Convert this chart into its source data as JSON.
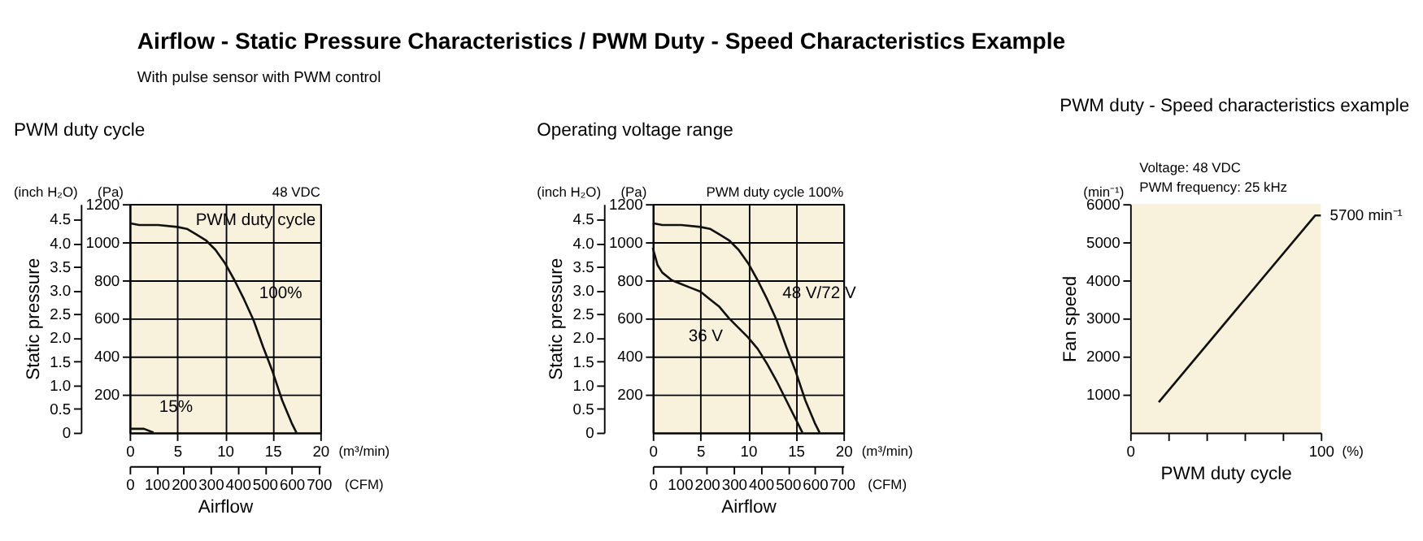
{
  "chart_data": [
    {
      "type": "other",
      "title": "Airflow - Static Pressure Characteristics / PWM Duty - Speed Characteristics Example",
      "subtitle": "With pulse sensor with PWM control"
    },
    {
      "type": "line",
      "title": "PWM duty cycle",
      "xlabel": "(m³/min)",
      "ylabel": "(Pa)",
      "x2label": "Airflow",
      "y2label": "Static pressure",
      "legend_title": "PWM duty cycle",
      "xlim": [
        0,
        20
      ],
      "xticks": [
        0,
        5,
        10,
        15,
        20
      ],
      "ylim": [
        0,
        1200
      ],
      "yticks": [
        200,
        400,
        600,
        800,
        1000,
        1200
      ],
      "x2lim": [
        0,
        706
      ],
      "x2ticks": [
        0,
        100,
        200,
        300,
        400,
        500,
        600,
        700
      ],
      "y2lim": [
        0,
        4.82
      ],
      "y2ticks": [
        0,
        0.5,
        {
          "value": 1,
          "label": "1.0"
        },
        1.5,
        {
          "value": 2,
          "label": "2.0"
        },
        2.5,
        {
          "value": 3,
          "label": "3.0"
        },
        3.5,
        {
          "value": 4,
          "label": "4.0"
        },
        4.5
      ],
      "grid": true,
      "annotations": [
        "(inch H₂O)",
        "(CFM)",
        "48 VDC"
      ],
      "series": [
        {
          "name": "100%",
          "color": "#111111",
          "x": [
            0,
            1,
            3,
            5,
            6,
            7,
            8,
            9,
            10,
            11,
            12,
            13,
            14,
            15,
            16,
            17,
            17.5
          ],
          "values": [
            1100,
            1090,
            1090,
            1080,
            1070,
            1040,
            1010,
            960,
            890,
            800,
            700,
            590,
            450,
            320,
            170,
            50,
            0
          ]
        },
        {
          "name": "15%",
          "color": "#111111",
          "x": [
            0,
            1.5,
            2.5
          ],
          "values": [
            20,
            20,
            0
          ]
        }
      ]
    },
    {
      "type": "line",
      "title": "Operating voltage range",
      "xlabel": "(m³/min)",
      "ylabel": "(Pa)",
      "x2label": "Airflow",
      "y2label": "Static pressure",
      "xlim": [
        0,
        20
      ],
      "xticks": [
        0,
        5,
        10,
        15,
        20
      ],
      "ylim": [
        0,
        1200
      ],
      "yticks": [
        200,
        400,
        600,
        800,
        1000,
        1200
      ],
      "x2lim": [
        0,
        706
      ],
      "x2ticks": [
        0,
        100,
        200,
        300,
        400,
        500,
        600,
        700
      ],
      "y2lim": [
        0,
        4.82
      ],
      "y2ticks": [
        0,
        0.5,
        {
          "value": 1,
          "label": "1.0"
        },
        1.5,
        {
          "value": 2,
          "label": "2.0"
        },
        2.5,
        {
          "value": 3,
          "label": "3.0"
        },
        3.5,
        {
          "value": 4,
          "label": "4.0"
        },
        4.5
      ],
      "grid": true,
      "annotations": [
        "(inch H₂O)",
        "(CFM)",
        "PWM duty cycle 100%"
      ],
      "series": [
        {
          "name": "48 V/72 V",
          "color": "#111111",
          "x": [
            0,
            1,
            3,
            5,
            6,
            7,
            8,
            9,
            10,
            11,
            12,
            13,
            14,
            15,
            16,
            17,
            17.5
          ],
          "values": [
            1100,
            1090,
            1090,
            1080,
            1070,
            1040,
            1010,
            960,
            890,
            800,
            700,
            590,
            450,
            320,
            170,
            50,
            0
          ]
        },
        {
          "name": "36 V",
          "color": "#111111",
          "x": [
            0,
            0.5,
            1,
            2,
            3,
            4,
            5,
            6,
            7,
            8,
            9,
            10,
            11,
            12,
            13,
            14,
            15,
            15.7
          ],
          "values": [
            970,
            880,
            840,
            800,
            780,
            760,
            740,
            700,
            660,
            600,
            550,
            500,
            440,
            360,
            270,
            170,
            70,
            0
          ]
        }
      ]
    },
    {
      "type": "line",
      "title": "PWM duty - Speed characteristics example",
      "xlabel": "PWM duty cycle",
      "ylabel": "Fan speed",
      "xlim": [
        0,
        100
      ],
      "xticks": [
        0,
        {
          "value": 20,
          "label": null
        },
        {
          "value": 40,
          "label": null
        },
        {
          "value": 60,
          "label": null
        },
        {
          "value": 80,
          "label": null
        },
        100
      ],
      "ylim": [
        0,
        6000
      ],
      "yticks": [
        1000,
        2000,
        3000,
        4000,
        5000,
        6000
      ],
      "annotations": [
        "(min⁻¹)",
        "(%)",
        "Voltage: 48 VDC",
        "PWM frequency: 25 kHz",
        {
          "text": "5700 min⁻¹",
          "x": 100,
          "y": 5700
        }
      ],
      "series": [
        {
          "color": "#111111",
          "x": [
            15,
            97,
            100
          ],
          "values": [
            800,
            5700,
            5700
          ]
        }
      ]
    }
  ]
}
